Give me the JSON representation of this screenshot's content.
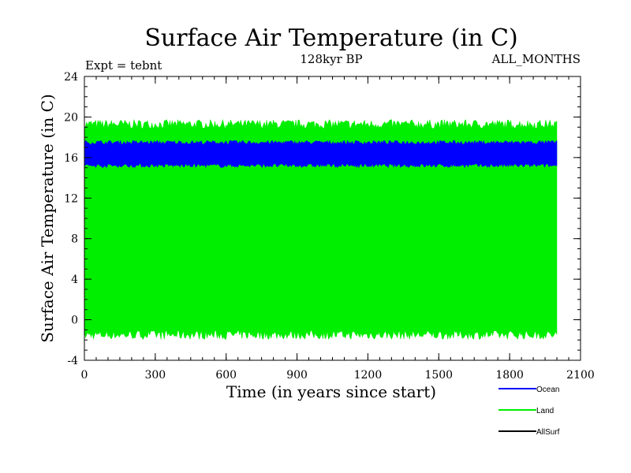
{
  "chart_data": {
    "type": "line",
    "title": "Surface Air Temperature (in C)",
    "subtitle": "128kyr BP",
    "left_note": "Expt = tebnt",
    "right_note": "ALL_MONTHS",
    "xlabel": "Time (in years since start)",
    "ylabel": "Surface Air Temperature (in C)",
    "xlim": [
      0,
      2100
    ],
    "ylim": [
      -4,
      24
    ],
    "xticks": [
      "0",
      "300",
      "600",
      "900",
      "1200",
      "1500",
      "1800",
      "2100"
    ],
    "yticks": [
      "-4",
      "0",
      "4",
      "8",
      "12",
      "16",
      "20",
      "24"
    ],
    "x_range": [
      0,
      2000
    ],
    "series": [
      {
        "name": "Ocean",
        "color": "#0000ff",
        "band_low": 15.2,
        "band_high": 17.5
      },
      {
        "name": "Land",
        "color": "#00ee00",
        "band_low": -1.5,
        "band_high": 19.3
      },
      {
        "name": "AllSurf",
        "color": "#000000"
      }
    ]
  }
}
